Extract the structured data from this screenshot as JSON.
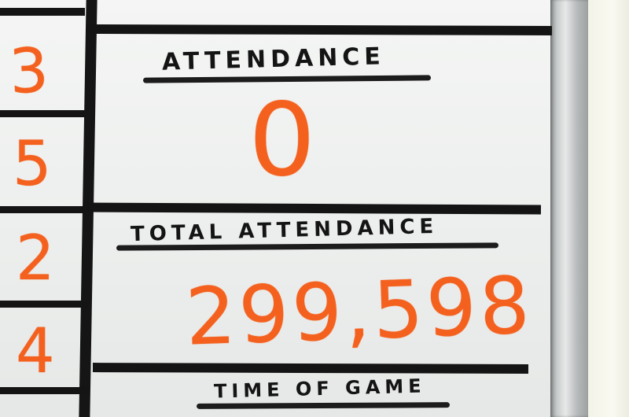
{
  "headings": {
    "attendance": "ATTENDANCE",
    "total_attendance": "TOTAL ATTENDANCE",
    "time_of_game": "TIME OF GAME"
  },
  "values": {
    "attendance": "0",
    "total_attendance": "299,598"
  },
  "left_column_numbers": [
    "3",
    "5",
    "2",
    "4"
  ],
  "colors": {
    "marker_orange": "#f4611f",
    "tape_black": "#141414",
    "board_white": "#f1f2f1"
  }
}
